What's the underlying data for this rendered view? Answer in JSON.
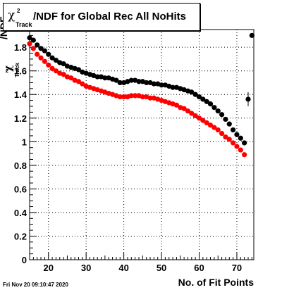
{
  "chart_data": {
    "type": "scatter",
    "title": "/NDF for Global Rec All NoHits",
    "title_symbol": {
      "chi": "χ",
      "sup": "2",
      "sub": "Track"
    },
    "ylabel": {
      "prefix": "χ",
      "sup": "2",
      "sub": "Track",
      "suffix": "/NDF"
    },
    "xlabel": "No. of Fit Points",
    "xlim": [
      15,
      74.5
    ],
    "ylim": [
      0,
      1.95
    ],
    "x_ticks": [
      20,
      30,
      40,
      50,
      60,
      70
    ],
    "y_ticks": [
      "0",
      "0.2",
      "0.4",
      "0.6",
      "0.8",
      "1",
      "1.2",
      "1.4",
      "1.6",
      "1.8"
    ],
    "y_tick_values": [
      0,
      0.2,
      0.4,
      0.6,
      0.8,
      1.0,
      1.2,
      1.4,
      1.6,
      1.8
    ],
    "grid": true,
    "series": [
      {
        "color": "#000000",
        "x": [
          15,
          16,
          17,
          18,
          19,
          20,
          21,
          22,
          23,
          24,
          25,
          26,
          27,
          28,
          29,
          30,
          31,
          32,
          33,
          34,
          35,
          36,
          37,
          38,
          39,
          40,
          41,
          42,
          43,
          44,
          45,
          46,
          47,
          48,
          49,
          50,
          51,
          52,
          53,
          54,
          55,
          56,
          57,
          58,
          59,
          60,
          61,
          62,
          63,
          64,
          65,
          66,
          67,
          68,
          69,
          70,
          71,
          72,
          73,
          74
        ],
        "y": [
          1.88,
          1.86,
          1.82,
          1.79,
          1.77,
          1.74,
          1.71,
          1.69,
          1.67,
          1.66,
          1.64,
          1.63,
          1.62,
          1.61,
          1.59,
          1.58,
          1.57,
          1.56,
          1.55,
          1.55,
          1.54,
          1.54,
          1.53,
          1.52,
          1.5,
          1.5,
          1.51,
          1.52,
          1.52,
          1.51,
          1.51,
          1.5,
          1.5,
          1.49,
          1.49,
          1.48,
          1.48,
          1.47,
          1.46,
          1.46,
          1.45,
          1.44,
          1.43,
          1.42,
          1.4,
          1.38,
          1.36,
          1.34,
          1.32,
          1.29,
          1.26,
          1.23,
          1.19,
          1.15,
          1.1,
          1.06,
          1.03,
          0.99,
          1.36,
          1.9
        ],
        "y_err": [
          0.01,
          0.01,
          0.01,
          0.01,
          0.01,
          0.01,
          0.01,
          0.01,
          0.01,
          0.01,
          0.01,
          0.01,
          0.01,
          0.01,
          0.01,
          0.01,
          0.01,
          0.01,
          0.01,
          0.01,
          0.01,
          0.01,
          0.01,
          0.01,
          0.01,
          0.01,
          0.01,
          0.01,
          0.01,
          0.01,
          0.01,
          0.01,
          0.01,
          0.01,
          0.01,
          0.01,
          0.01,
          0.01,
          0.01,
          0.01,
          0.01,
          0.01,
          0.01,
          0.01,
          0.01,
          0.01,
          0.01,
          0.01,
          0.01,
          0.01,
          0.01,
          0.01,
          0.01,
          0.01,
          0.01,
          0.01,
          0.01,
          0.01,
          0.06,
          0.01
        ]
      },
      {
        "color": "#ff0000",
        "x": [
          15,
          16,
          17,
          18,
          19,
          20,
          21,
          22,
          23,
          24,
          25,
          26,
          27,
          28,
          29,
          30,
          31,
          32,
          33,
          34,
          35,
          36,
          37,
          38,
          39,
          40,
          41,
          42,
          43,
          44,
          45,
          46,
          47,
          48,
          49,
          50,
          51,
          52,
          53,
          54,
          55,
          56,
          57,
          58,
          59,
          60,
          61,
          62,
          63,
          64,
          65,
          66,
          67,
          68,
          69,
          70,
          71,
          72
        ],
        "y": [
          1.83,
          1.79,
          1.74,
          1.71,
          1.68,
          1.65,
          1.62,
          1.6,
          1.58,
          1.57,
          1.55,
          1.54,
          1.52,
          1.51,
          1.49,
          1.47,
          1.46,
          1.45,
          1.44,
          1.43,
          1.42,
          1.41,
          1.4,
          1.39,
          1.38,
          1.38,
          1.38,
          1.39,
          1.39,
          1.39,
          1.38,
          1.38,
          1.37,
          1.37,
          1.36,
          1.35,
          1.34,
          1.33,
          1.32,
          1.31,
          1.29,
          1.28,
          1.26,
          1.24,
          1.22,
          1.2,
          1.18,
          1.16,
          1.14,
          1.12,
          1.1,
          1.07,
          1.04,
          1.02,
          0.99,
          0.96,
          0.93,
          0.89
        ]
      }
    ]
  },
  "ui": {
    "date_stamp": "Fri Nov 20 09:10:47 2020"
  }
}
